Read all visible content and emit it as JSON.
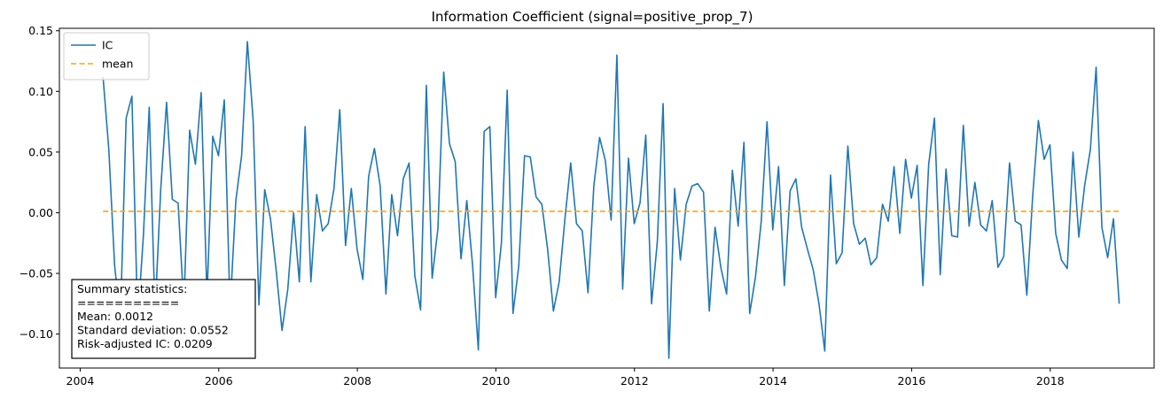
{
  "chart_data": {
    "type": "line",
    "title": "Information Coefficient (signal=positive_prop_7)",
    "xlabel": "",
    "ylabel": "",
    "xlim": [
      2003.7,
      2019.5
    ],
    "ylim": [
      -0.128,
      0.152
    ],
    "x_ticks": [
      2004,
      2006,
      2008,
      2010,
      2012,
      2014,
      2016,
      2018
    ],
    "y_ticks": [
      -0.1,
      -0.05,
      0.0,
      0.05,
      0.1,
      0.15
    ],
    "y_tick_labels": [
      "−0.10",
      "−0.05",
      "0.00",
      "0.05",
      "0.10",
      "0.15"
    ],
    "grid": false,
    "legend_position": "top-left",
    "series": [
      {
        "name": "IC",
        "color": "#1f77b4",
        "style": "solid",
        "x_start": 2004.33,
        "x_step": 0.08333,
        "values": [
          0.112,
          0.052,
          -0.043,
          -0.09,
          0.078,
          0.096,
          -0.09,
          -0.018,
          0.087,
          -0.083,
          0.02,
          0.091,
          0.011,
          0.008,
          -0.078,
          0.068,
          0.04,
          0.099,
          -0.07,
          0.063,
          0.047,
          0.093,
          -0.08,
          0.01,
          0.047,
          0.141,
          0.076,
          -0.076,
          0.019,
          -0.005,
          -0.048,
          -0.097,
          -0.063,
          0.0,
          -0.057,
          0.071,
          -0.057,
          0.015,
          -0.015,
          -0.009,
          0.02,
          0.085,
          -0.027,
          0.02,
          -0.03,
          -0.055,
          0.03,
          0.053,
          0.022,
          -0.067,
          0.015,
          -0.019,
          0.028,
          0.041,
          -0.052,
          -0.08,
          0.105,
          -0.054,
          -0.013,
          0.116,
          0.057,
          0.042,
          -0.038,
          0.01,
          -0.043,
          -0.113,
          0.067,
          0.071,
          -0.07,
          -0.025,
          0.101,
          -0.083,
          -0.044,
          0.047,
          0.046,
          0.013,
          0.007,
          -0.03,
          -0.081,
          -0.057,
          -0.005,
          0.041,
          -0.009,
          -0.015,
          -0.066,
          0.022,
          0.062,
          0.043,
          -0.006,
          0.13,
          -0.063,
          0.045,
          -0.009,
          0.008,
          0.064,
          -0.075,
          -0.024,
          0.09,
          -0.12,
          0.02,
          -0.039,
          0.007,
          0.022,
          0.024,
          0.017,
          -0.081,
          -0.012,
          -0.045,
          -0.067,
          0.035,
          -0.011,
          0.058,
          -0.083,
          -0.053,
          -0.007,
          0.075,
          -0.014,
          0.038,
          -0.06,
          0.018,
          0.028,
          -0.012,
          -0.03,
          -0.047,
          -0.075,
          -0.114,
          0.031,
          -0.042,
          -0.033,
          0.055,
          -0.009,
          -0.026,
          -0.021,
          -0.043,
          -0.037,
          0.007,
          -0.007,
          0.038,
          -0.017,
          0.044,
          0.012,
          0.039,
          -0.06,
          0.04,
          0.078,
          -0.051,
          0.036,
          -0.019,
          -0.02,
          0.072,
          -0.011,
          0.025,
          -0.01,
          -0.015,
          0.01,
          -0.045,
          -0.036,
          0.041,
          -0.007,
          -0.01,
          -0.068,
          0.013,
          0.076,
          0.044,
          0.056,
          -0.017,
          -0.039,
          -0.046,
          0.05,
          -0.02,
          0.022,
          0.052,
          0.12,
          -0.012,
          -0.037,
          -0.005,
          -0.075
        ]
      },
      {
        "name": "mean",
        "color": "#ffa500",
        "style": "dashed",
        "x": [
          2004.33,
          2019.0
        ],
        "values": [
          0.0012,
          0.0012
        ]
      }
    ],
    "annotation": {
      "lines": [
        "Summary statistics:",
        "===========",
        "Mean: 0.0012",
        "Standard deviation: 0.0552",
        "Risk-adjusted IC: 0.0209"
      ]
    }
  }
}
